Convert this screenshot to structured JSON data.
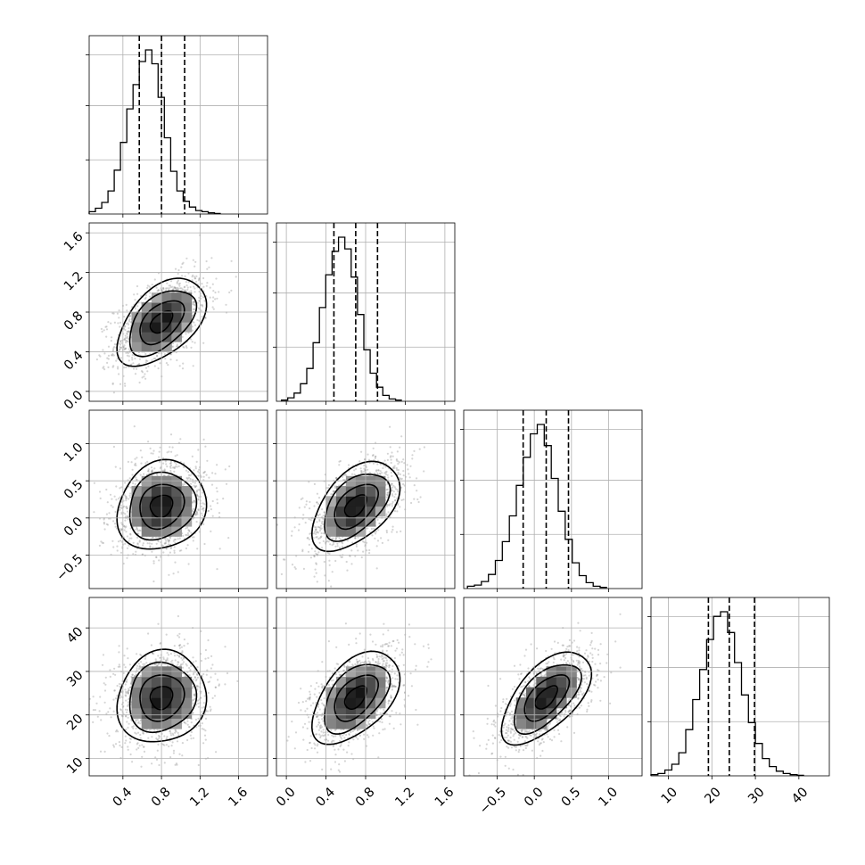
{
  "chart_data": {
    "type": "corner",
    "description_of_layout": "4x4 lower-triangular corner plot of posterior samples; diagonal panels are 1D histograms with dashed quantile lines, off-diagonal panels are 2D density (scatter + contours + shaded histogram).",
    "grid": true,
    "parameters": [
      {
        "range": [
          0.05,
          1.9
        ],
        "ticks": [
          0.4,
          0.8,
          1.2,
          1.6
        ],
        "tick_labels": [
          "0.4",
          "0.8",
          "1.2",
          "1.6"
        ],
        "quantiles": [
          0.57,
          0.8,
          1.04
        ],
        "hist": {
          "x_start": 0.05,
          "bin_width": 0.065,
          "counts": [
            2,
            5,
            10,
            20,
            38,
            62,
            91,
            112,
            132,
            142,
            130,
            101,
            66,
            37,
            20,
            11,
            6,
            3,
            2,
            1,
            0.5
          ]
        }
      },
      {
        "range": [
          -0.1,
          1.7
        ],
        "ticks": [
          0.0,
          0.4,
          0.8,
          1.2,
          1.6
        ],
        "tick_labels": [
          "0.0",
          "0.4",
          "0.8",
          "1.2",
          "1.6"
        ],
        "quantiles": [
          0.48,
          0.7,
          0.92
        ],
        "hist": {
          "x_start": -0.05,
          "bin_width": 0.064,
          "counts": [
            1,
            3,
            7,
            15,
            28,
            50,
            80,
            108,
            128,
            140,
            130,
            106,
            74,
            44,
            24,
            12,
            5,
            2,
            1
          ]
        }
      },
      {
        "range": [
          -0.95,
          1.45
        ],
        "ticks": [
          -0.5,
          0.0,
          0.5,
          1.0
        ],
        "tick_labels": [
          "−0.5",
          "0.0",
          "0.5",
          "1.0"
        ],
        "quantiles": [
          -0.15,
          0.16,
          0.46
        ],
        "hist": {
          "x_start": -0.9,
          "bin_width": 0.094,
          "counts": [
            2,
            3,
            6,
            12,
            24,
            40,
            62,
            88,
            112,
            132,
            140,
            122,
            94,
            66,
            42,
            22,
            11,
            5,
            2,
            1
          ]
        }
      },
      {
        "range": [
          6,
          47
        ],
        "ticks": [
          10,
          20,
          30,
          40
        ],
        "tick_labels": [
          "10",
          "20",
          "30",
          "40"
        ],
        "quantiles": [
          19.2,
          24.0,
          29.8
        ],
        "hist": {
          "x_start": 6,
          "bin_width": 1.6,
          "counts": [
            1,
            2,
            5,
            10,
            20,
            40,
            66,
            92,
            118,
            138,
            142,
            124,
            98,
            70,
            46,
            28,
            15,
            8,
            4,
            2,
            1,
            0.5
          ]
        }
      }
    ],
    "pairs": [
      {
        "x": 0,
        "y": 1,
        "mean_x": 0.8,
        "mean_y": 0.7,
        "sd_x": 0.23,
        "sd_y": 0.22,
        "corr": 0.5
      },
      {
        "x": 0,
        "y": 2,
        "mean_x": 0.8,
        "mean_y": 0.16,
        "sd_x": 0.23,
        "sd_y": 0.3,
        "corr": 0.15
      },
      {
        "x": 1,
        "y": 2,
        "mean_x": 0.7,
        "mean_y": 0.16,
        "sd_x": 0.22,
        "sd_y": 0.3,
        "corr": 0.5
      },
      {
        "x": 0,
        "y": 3,
        "mean_x": 0.8,
        "mean_y": 24.0,
        "sd_x": 0.23,
        "sd_y": 5.3,
        "corr": 0.1
      },
      {
        "x": 1,
        "y": 3,
        "mean_x": 0.7,
        "mean_y": 24.0,
        "sd_x": 0.22,
        "sd_y": 5.3,
        "corr": 0.5
      },
      {
        "x": 2,
        "y": 3,
        "mean_x": 0.16,
        "mean_y": 24.0,
        "sd_x": 0.3,
        "sd_y": 5.3,
        "corr": 0.6
      }
    ],
    "contour_levels_sigma": [
      0.5,
      1.0,
      1.5,
      2.0
    ]
  }
}
